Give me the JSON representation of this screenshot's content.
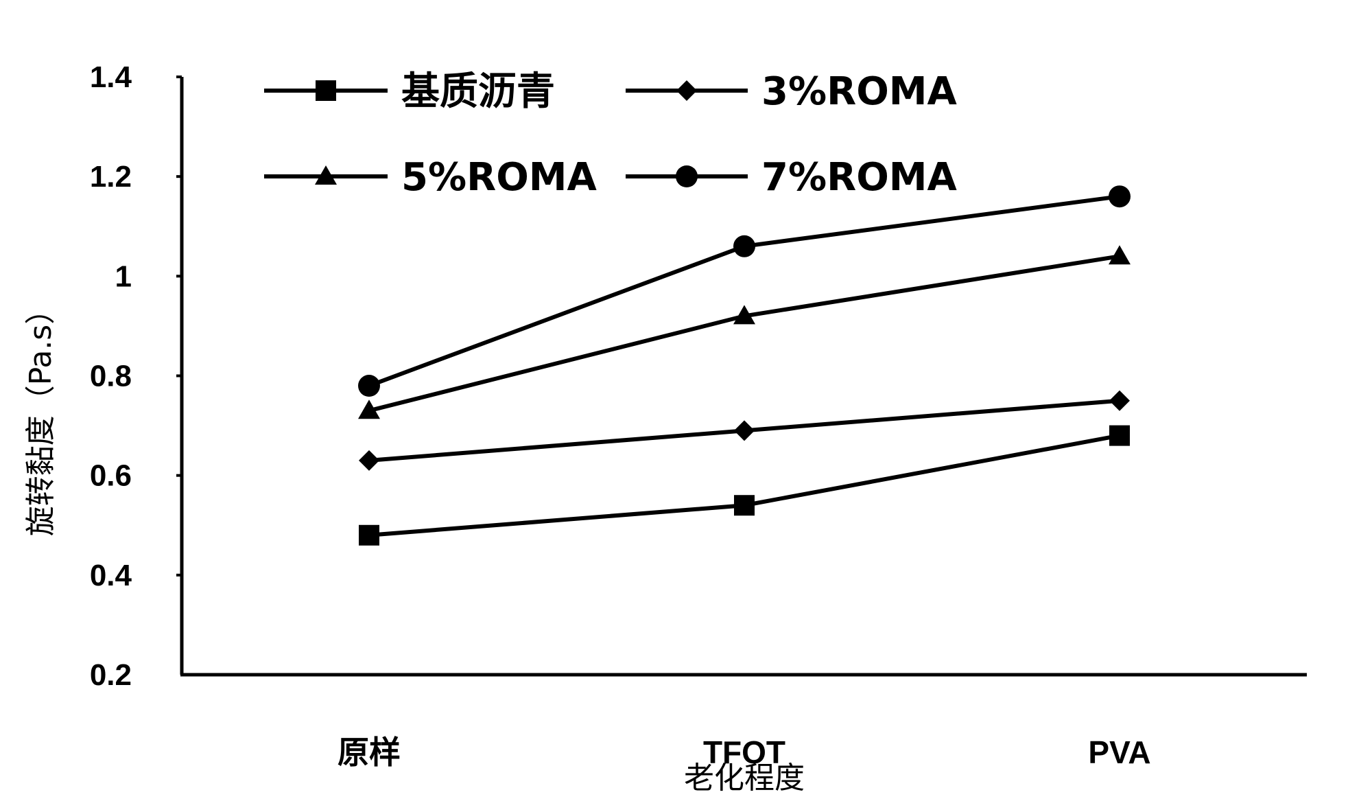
{
  "chart_data": {
    "type": "line",
    "categories": [
      "原样",
      "TFOT",
      "PVA"
    ],
    "xlabel": "老化程度",
    "ylabel": "旋转黏度（Pa.s）",
    "ylim": [
      0.2,
      1.4
    ],
    "yticks": [
      "0.2",
      "0.4",
      "0.6",
      "0.8",
      "1",
      "1.2",
      "1.4"
    ],
    "grid": false,
    "legend_position": "top",
    "series": [
      {
        "name": "基质沥青",
        "marker": "square",
        "values": [
          0.48,
          0.54,
          0.68
        ]
      },
      {
        "name": "3%ROMA",
        "marker": "diamond",
        "values": [
          0.63,
          0.69,
          0.75
        ]
      },
      {
        "name": "5%ROMA",
        "marker": "triangle",
        "values": [
          0.73,
          0.92,
          1.04
        ]
      },
      {
        "name": "7%ROMA",
        "marker": "circle",
        "values": [
          0.78,
          1.06,
          1.16
        ]
      }
    ],
    "line_color": "#000000"
  }
}
